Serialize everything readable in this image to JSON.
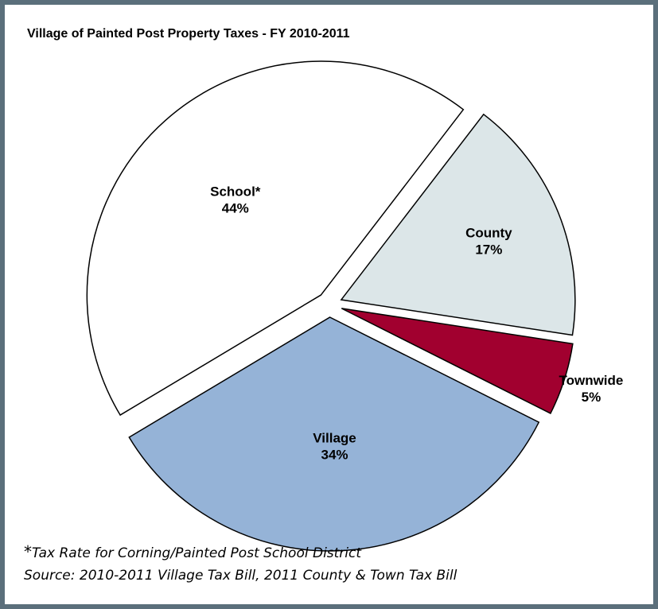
{
  "chart_data": {
    "type": "pie",
    "title": "Village of Painted Post Property Taxes  - FY 2010-2011",
    "exploded": true,
    "slices": [
      {
        "label": "County",
        "pct_label": "17%",
        "value": 17,
        "color": "#dce6e8"
      },
      {
        "label": "Townwide",
        "pct_label": "5%",
        "value": 5,
        "color": "#a1002f"
      },
      {
        "label": "Village",
        "pct_label": "34%",
        "value": 34,
        "color": "#95b3d7"
      },
      {
        "label": "School*",
        "pct_label": "44%",
        "value": 44,
        "color": "#ffffff"
      }
    ]
  },
  "footnote": {
    "marker": "*",
    "text": "Tax Rate for Corning/Painted Post School District"
  },
  "source": "Source: 2010-2011 Village Tax Bill, 2011 County & Town Tax Bill"
}
